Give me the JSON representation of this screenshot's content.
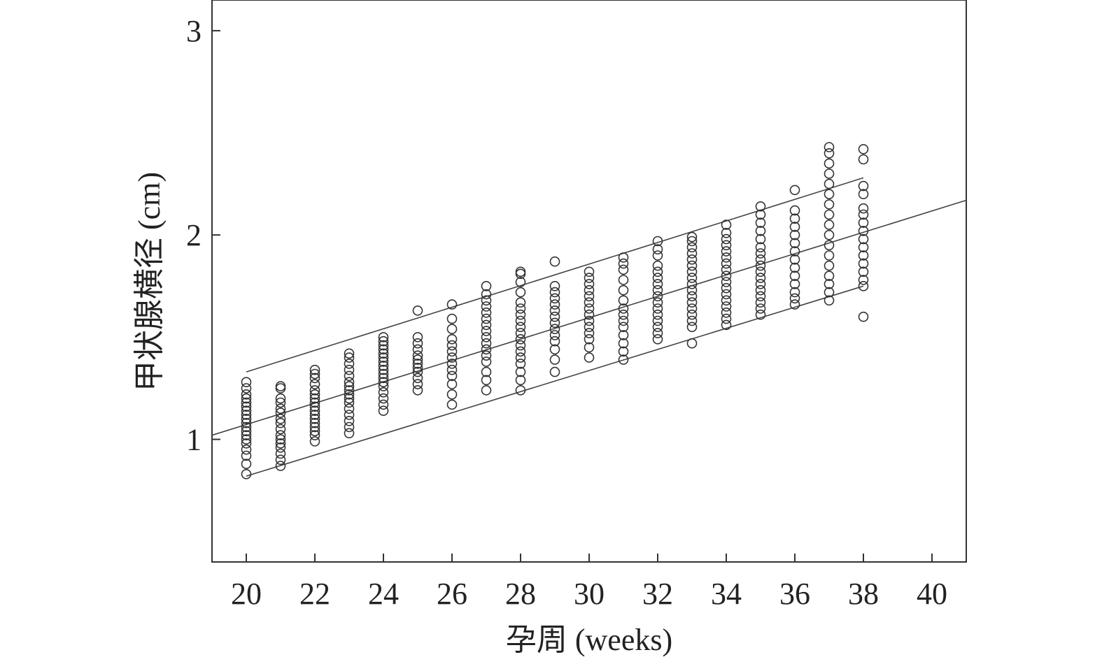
{
  "chart_data": {
    "type": "scatter",
    "xlabel": "孕周 (weeks)",
    "ylabel": "甲状腺横径 (cm)",
    "xlim": [
      19,
      41
    ],
    "ylim": [
      0.4,
      3.15
    ],
    "x_ticks": [
      20,
      22,
      24,
      26,
      28,
      30,
      32,
      34,
      36,
      38,
      40
    ],
    "y_ticks": [
      1,
      2,
      3
    ],
    "grid": false,
    "points": [
      {
        "week": 20,
        "values": [
          0.83,
          0.88,
          0.92,
          0.95,
          0.98,
          1.0,
          1.02,
          1.04,
          1.06,
          1.08,
          1.1,
          1.12,
          1.14,
          1.16,
          1.18,
          1.2,
          1.22,
          1.25,
          1.28
        ]
      },
      {
        "week": 21,
        "values": [
          0.87,
          0.9,
          0.93,
          0.96,
          0.98,
          1.0,
          1.02,
          1.05,
          1.08,
          1.1,
          1.13,
          1.15,
          1.18,
          1.2,
          1.25,
          1.26
        ]
      },
      {
        "week": 22,
        "values": [
          0.99,
          1.02,
          1.04,
          1.06,
          1.08,
          1.1,
          1.12,
          1.14,
          1.16,
          1.18,
          1.2,
          1.22,
          1.24,
          1.27,
          1.3,
          1.32,
          1.34
        ]
      },
      {
        "week": 23,
        "values": [
          1.03,
          1.06,
          1.09,
          1.12,
          1.15,
          1.18,
          1.2,
          1.22,
          1.24,
          1.26,
          1.28,
          1.31,
          1.34,
          1.37,
          1.4,
          1.42
        ]
      },
      {
        "week": 24,
        "values": [
          1.14,
          1.17,
          1.2,
          1.23,
          1.26,
          1.28,
          1.3,
          1.32,
          1.34,
          1.36,
          1.38,
          1.4,
          1.42,
          1.44,
          1.46,
          1.48,
          1.5
        ]
      },
      {
        "week": 25,
        "values": [
          1.24,
          1.27,
          1.3,
          1.33,
          1.35,
          1.37,
          1.39,
          1.41,
          1.44,
          1.47,
          1.5,
          1.63
        ]
      },
      {
        "week": 26,
        "values": [
          1.17,
          1.22,
          1.27,
          1.31,
          1.34,
          1.37,
          1.4,
          1.43,
          1.46,
          1.49,
          1.54,
          1.59,
          1.66
        ]
      },
      {
        "week": 27,
        "values": [
          1.24,
          1.29,
          1.33,
          1.38,
          1.41,
          1.44,
          1.47,
          1.5,
          1.53,
          1.56,
          1.59,
          1.62,
          1.65,
          1.68,
          1.71,
          1.75
        ]
      },
      {
        "week": 28,
        "values": [
          1.24,
          1.29,
          1.33,
          1.37,
          1.4,
          1.43,
          1.46,
          1.49,
          1.52,
          1.55,
          1.58,
          1.61,
          1.64,
          1.67,
          1.72,
          1.77,
          1.81,
          1.82
        ]
      },
      {
        "week": 29,
        "values": [
          1.33,
          1.39,
          1.44,
          1.48,
          1.51,
          1.54,
          1.57,
          1.6,
          1.63,
          1.66,
          1.69,
          1.72,
          1.75,
          1.87
        ]
      },
      {
        "week": 30,
        "values": [
          1.4,
          1.45,
          1.49,
          1.52,
          1.55,
          1.58,
          1.61,
          1.64,
          1.67,
          1.7,
          1.73,
          1.76,
          1.79,
          1.82
        ]
      },
      {
        "week": 31,
        "values": [
          1.39,
          1.43,
          1.47,
          1.51,
          1.55,
          1.58,
          1.61,
          1.64,
          1.68,
          1.73,
          1.78,
          1.83,
          1.86,
          1.89
        ]
      },
      {
        "week": 32,
        "values": [
          1.49,
          1.52,
          1.55,
          1.58,
          1.61,
          1.64,
          1.67,
          1.7,
          1.73,
          1.76,
          1.79,
          1.82,
          1.85,
          1.9,
          1.93,
          1.97
        ]
      },
      {
        "week": 33,
        "values": [
          1.47,
          1.55,
          1.58,
          1.61,
          1.64,
          1.67,
          1.7,
          1.73,
          1.76,
          1.79,
          1.82,
          1.85,
          1.88,
          1.91,
          1.94,
          1.97,
          1.99
        ]
      },
      {
        "week": 34,
        "values": [
          1.56,
          1.59,
          1.62,
          1.65,
          1.68,
          1.71,
          1.74,
          1.77,
          1.8,
          1.83,
          1.86,
          1.89,
          1.92,
          1.95,
          1.98,
          2.01,
          2.05
        ]
      },
      {
        "week": 35,
        "values": [
          1.61,
          1.64,
          1.67,
          1.7,
          1.73,
          1.76,
          1.79,
          1.82,
          1.85,
          1.88,
          1.91,
          1.94,
          1.98,
          2.02,
          2.06,
          2.1,
          2.14
        ]
      },
      {
        "week": 36,
        "values": [
          1.66,
          1.69,
          1.72,
          1.76,
          1.8,
          1.84,
          1.88,
          1.92,
          1.96,
          2.0,
          2.04,
          2.08,
          2.12,
          2.22
        ]
      },
      {
        "week": 37,
        "values": [
          1.68,
          1.72,
          1.76,
          1.8,
          1.85,
          1.9,
          1.95,
          2.0,
          2.05,
          2.1,
          2.15,
          2.2,
          2.25,
          2.3,
          2.35,
          2.4,
          2.43
        ]
      },
      {
        "week": 38,
        "values": [
          1.6,
          1.75,
          1.78,
          1.82,
          1.86,
          1.9,
          1.94,
          1.98,
          2.02,
          2.06,
          2.1,
          2.13,
          2.2,
          2.24,
          2.37,
          2.42
        ]
      }
    ],
    "lines": [
      {
        "x": [
          19,
          41
        ],
        "y": [
          1.02,
          2.17
        ]
      },
      {
        "x": [
          20,
          38
        ],
        "y": [
          1.33,
          2.28
        ]
      },
      {
        "x": [
          20,
          38
        ],
        "y": [
          0.82,
          1.75
        ]
      }
    ]
  }
}
